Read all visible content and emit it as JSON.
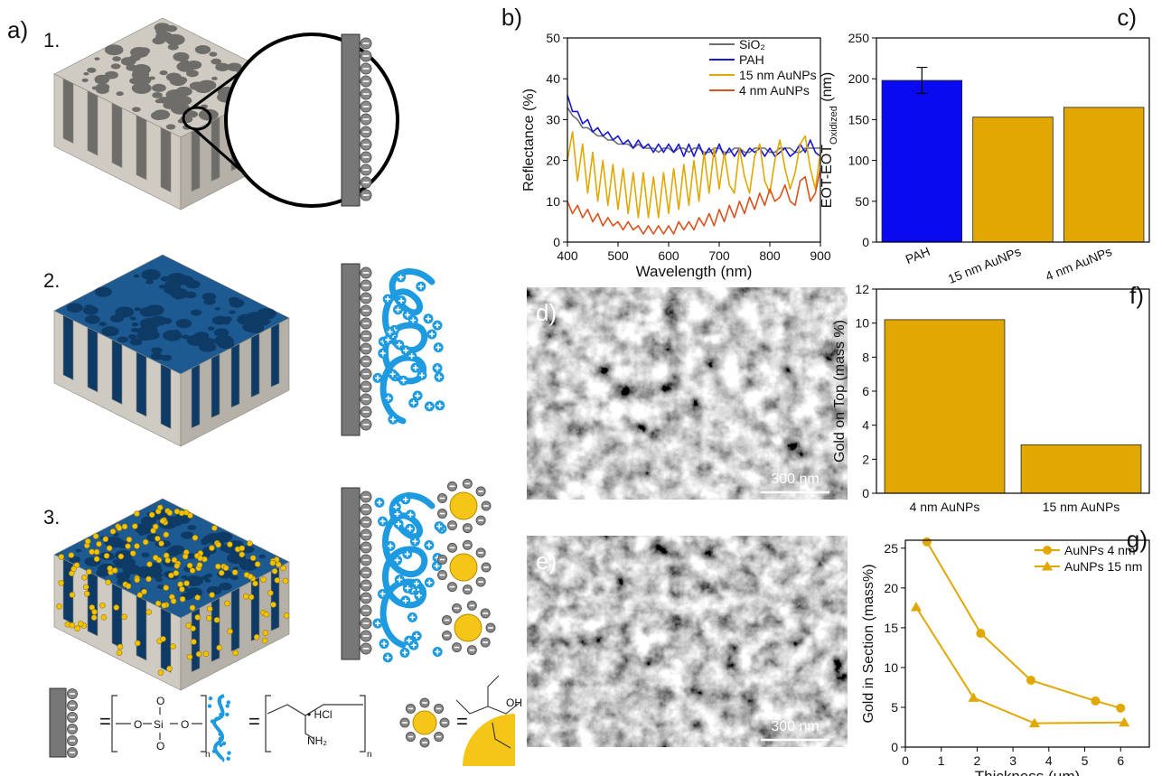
{
  "panel_a": {
    "label": "a)",
    "steps": [
      "1.",
      "2.",
      "3."
    ],
    "legend": [
      "=",
      "O",
      "Si",
      "O",
      "O",
      "O",
      "n",
      "=",
      "• HCl",
      "NH₂",
      "n",
      "=",
      "OH"
    ]
  },
  "sem_images": [
    {
      "label": "d)",
      "scale_bar": "300 nm"
    },
    {
      "label": "e)",
      "scale_bar": "300 nm"
    }
  ],
  "chart_data": [
    {
      "type": "line",
      "panel_label": "b)",
      "xlabel": "Wavelength (nm)",
      "ylabel": "Reflectance (%)",
      "x": [
        400,
        410,
        420,
        430,
        440,
        450,
        460,
        470,
        480,
        490,
        500,
        510,
        520,
        530,
        540,
        550,
        560,
        570,
        580,
        590,
        600,
        610,
        620,
        630,
        640,
        650,
        660,
        670,
        680,
        690,
        700,
        710,
        720,
        730,
        740,
        750,
        760,
        770,
        780,
        790,
        800,
        810,
        820,
        830,
        840,
        850,
        860,
        870,
        880,
        890,
        900
      ],
      "series": [
        {
          "name": "SiO₂",
          "color": "#6d6d6d",
          "values": [
            33,
            31,
            30,
            28,
            28,
            27,
            26,
            26,
            25,
            25,
            24,
            24,
            24,
            23,
            24,
            23,
            23,
            23,
            22,
            23,
            23,
            22,
            23,
            23,
            22,
            23,
            23,
            22,
            22,
            23,
            23,
            22,
            22,
            23,
            23,
            22,
            22,
            23,
            23,
            23,
            22,
            22,
            23,
            23,
            23,
            22,
            22,
            23,
            23,
            23,
            23
          ]
        },
        {
          "name": "PAH",
          "color": "#1717d6",
          "values": [
            36,
            32,
            32,
            29,
            30,
            27,
            28,
            26,
            27,
            25,
            26,
            24,
            25,
            23,
            25,
            23,
            24,
            22,
            24,
            22,
            24,
            22,
            24,
            21,
            24,
            21,
            24,
            21,
            23,
            21,
            24,
            21,
            23,
            21,
            23,
            21,
            23,
            22,
            23,
            21,
            23,
            21,
            22,
            23,
            21,
            22,
            24,
            22,
            25,
            22,
            21
          ]
        },
        {
          "name": "15 nm AuNPs",
          "color": "#e0a800",
          "values": [
            20,
            27,
            15,
            24,
            12,
            22,
            10,
            20,
            9,
            19,
            8,
            18,
            7,
            17,
            6,
            17,
            6,
            16,
            6,
            17,
            7,
            18,
            8,
            19,
            9,
            20,
            10,
            22,
            12,
            23,
            13,
            22,
            14,
            12,
            23,
            16,
            12,
            21,
            24,
            15,
            12,
            20,
            25,
            18,
            13,
            17,
            24,
            26,
            18,
            13,
            22
          ]
        },
        {
          "name": "4 nm AuNPs",
          "color": "#d9531e",
          "values": [
            10,
            7,
            9,
            6,
            8,
            5,
            7,
            4,
            6,
            4,
            5,
            3,
            5,
            3,
            4,
            2,
            4,
            2,
            4,
            2,
            4,
            2,
            5,
            3,
            5,
            3,
            6,
            4,
            7,
            4,
            8,
            5,
            9,
            6,
            10,
            7,
            11,
            8,
            12,
            9,
            13,
            10,
            11,
            14,
            10,
            9,
            15,
            16,
            10,
            12,
            18
          ]
        }
      ],
      "xlim": [
        400,
        900
      ],
      "xticks": [
        400,
        500,
        600,
        700,
        800,
        900
      ],
      "ylim": [
        0,
        50
      ],
      "yticks": [
        0,
        10,
        20,
        30,
        40,
        50
      ],
      "legend": "top right"
    },
    {
      "type": "bar",
      "panel_label": "c)",
      "ylabel": [
        "EOT-EOT",
        "Oxidized",
        " (nm)"
      ],
      "categories": [
        "PAH",
        "15 nm AuNPs",
        "4 nm AuNPs"
      ],
      "values": [
        198,
        153,
        165
      ],
      "errors": [
        16,
        null,
        null
      ],
      "colors": [
        "#0a0af0",
        "#e0a800",
        "#e0a800"
      ],
      "ylim": [
        0,
        250
      ],
      "yticks": [
        0,
        50,
        100,
        150,
        200,
        250
      ]
    },
    {
      "type": "bar",
      "panel_label": "f)",
      "ylabel": "Gold on Top (mass %)",
      "categories": [
        "4 nm AuNPs",
        "15 nm AuNPs"
      ],
      "values": [
        10.2,
        2.85
      ],
      "colors": [
        "#e0a800",
        "#e0a800"
      ],
      "ylim": [
        0,
        12
      ],
      "yticks": [
        0,
        2,
        4,
        6,
        8,
        10,
        12
      ]
    },
    {
      "type": "line",
      "panel_label": "g)",
      "xlabel": "Thickness (μm)",
      "ylabel": "Gold in Section (mass%)",
      "series": [
        {
          "name": "AuNPs 4 nm",
          "color": "#e0a800",
          "marker": "circle",
          "x": [
            0.6,
            2.1,
            3.5,
            5.3,
            6.0
          ],
          "values": [
            25.8,
            14.3,
            8.4,
            5.8,
            4.9
          ]
        },
        {
          "name": "AuNPs 15 nm",
          "color": "#e0a800",
          "marker": "triangle",
          "x": [
            0.3,
            1.9,
            3.6,
            6.1
          ],
          "values": [
            17.6,
            6.2,
            3.0,
            3.1
          ]
        }
      ],
      "xlim": [
        0,
        6.8
      ],
      "xticks": [
        0,
        1,
        2,
        3,
        4,
        5,
        6
      ],
      "ylim": [
        0,
        26
      ],
      "yticks": [
        0,
        5,
        10,
        15,
        20,
        25
      ],
      "legend": "top right"
    }
  ]
}
